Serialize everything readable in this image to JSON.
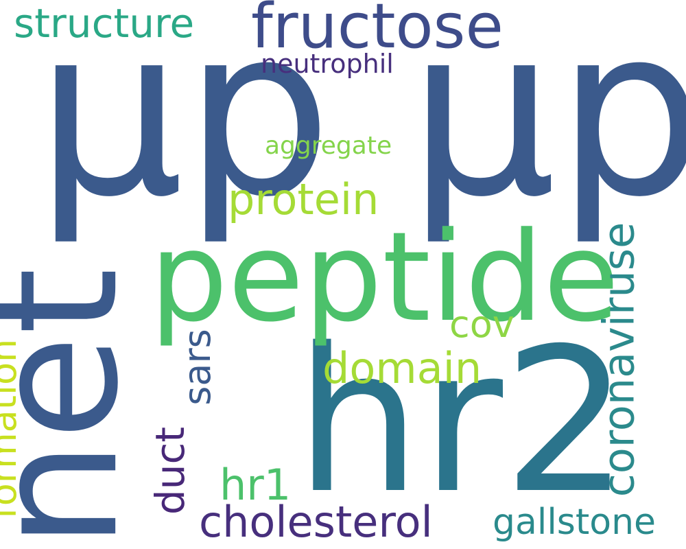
{
  "words": [
    {
      "id": "mu-p-1",
      "text": "μp",
      "color": "#3b5a8c",
      "orientation": "horizontal"
    },
    {
      "id": "mu-p-2",
      "text": "μp",
      "color": "#3b5a8c",
      "orientation": "horizontal"
    },
    {
      "id": "hr2",
      "text": "hr2",
      "color": "#2b748c",
      "orientation": "horizontal"
    },
    {
      "id": "net",
      "text": "net",
      "color": "#3b5a8c",
      "orientation": "vertical"
    },
    {
      "id": "peptide",
      "text": "peptide",
      "color": "#4cc16b",
      "orientation": "horizontal"
    },
    {
      "id": "fructose",
      "text": "fructose",
      "color": "#3e4c8a",
      "orientation": "horizontal"
    },
    {
      "id": "structure",
      "text": "structure",
      "color": "#2aa886",
      "orientation": "horizontal"
    },
    {
      "id": "neutrophil",
      "text": "neutrophil",
      "color": "#472f7d",
      "orientation": "horizontal"
    },
    {
      "id": "aggregate",
      "text": "aggregate",
      "color": "#84d44b",
      "orientation": "horizontal"
    },
    {
      "id": "protein",
      "text": "protein",
      "color": "#a5db36",
      "orientation": "horizontal"
    },
    {
      "id": "cov",
      "text": "cov",
      "color": "#8ed645",
      "orientation": "horizontal"
    },
    {
      "id": "domain",
      "text": "domain",
      "color": "#a5db36",
      "orientation": "horizontal"
    },
    {
      "id": "sars",
      "text": "sars",
      "color": "#3b5a8c",
      "orientation": "vertical"
    },
    {
      "id": "duct",
      "text": "duct",
      "color": "#482878",
      "orientation": "vertical"
    },
    {
      "id": "hr1",
      "text": "hr1",
      "color": "#4cc16b",
      "orientation": "horizontal"
    },
    {
      "id": "cholesterol",
      "text": "cholesterol",
      "color": "#472f7d",
      "orientation": "horizontal"
    },
    {
      "id": "formation",
      "text": "formation",
      "color": "#c8e020",
      "orientation": "vertical"
    },
    {
      "id": "coronaviruse",
      "text": "coronaviruse",
      "color": "#2b8a8c",
      "orientation": "vertical"
    },
    {
      "id": "gallstone",
      "text": "gallstone",
      "color": "#2a8a8c",
      "orientation": "horizontal"
    }
  ]
}
